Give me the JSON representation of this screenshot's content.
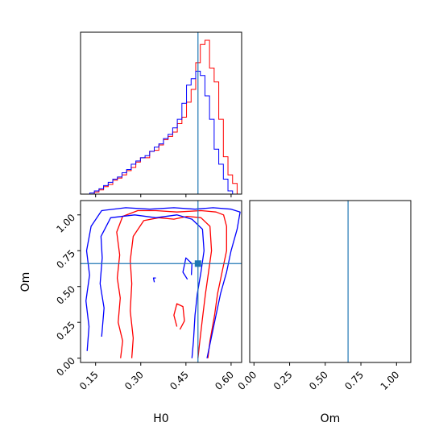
{
  "chart_data": {
    "type": "corner",
    "parameters": [
      "H0",
      "Om"
    ],
    "truth": {
      "H0": 0.49,
      "Om": 0.66,
      "color": "#1f77b4"
    },
    "series_colors": {
      "red": "#ff0000",
      "blue": "#0000ff"
    },
    "axes": {
      "H0": {
        "label": "H0",
        "xlim": [
          0.1,
          0.635
        ],
        "ticks": [
          0.15,
          0.3,
          0.45,
          0.6
        ],
        "tick_labels": [
          "0.15",
          "0.30",
          "0.45",
          "0.60"
        ]
      },
      "Om": {
        "label": "Om",
        "lim": [
          -0.03,
          1.1
        ],
        "ticks": [
          0.0,
          0.25,
          0.5,
          0.75,
          1.0
        ],
        "tick_labels": [
          "0.00",
          "0.25",
          "0.50",
          "0.75",
          "1.00"
        ]
      }
    },
    "hist_H0": {
      "bin_edges": [
        0.1,
        0.1153,
        0.1306,
        0.1459,
        0.1612,
        0.1765,
        0.1918,
        0.2071,
        0.2224,
        0.2377,
        0.253,
        0.2683,
        0.2836,
        0.2989,
        0.3142,
        0.3295,
        0.3448,
        0.3601,
        0.3754,
        0.3907,
        0.406,
        0.4213,
        0.4366,
        0.4519,
        0.4672,
        0.4825,
        0.4978,
        0.5131,
        0.5284,
        0.5437,
        0.559,
        0.5743,
        0.5896,
        0.6049,
        0.62,
        0.635
      ],
      "red": [
        0,
        0,
        0,
        2,
        4,
        7,
        9,
        13,
        15,
        18,
        22,
        25,
        30,
        34,
        34,
        40,
        41,
        46,
        51,
        54,
        58,
        66,
        72,
        86,
        98,
        123,
        140,
        144,
        118,
        105,
        70,
        35,
        18,
        10
      ],
      "blue": [
        0,
        0,
        1,
        3,
        5,
        8,
        11,
        14,
        16,
        20,
        23,
        28,
        31,
        34,
        36,
        40,
        44,
        47,
        52,
        56,
        62,
        70,
        85,
        102,
        108,
        115,
        111,
        92,
        70,
        42,
        28,
        14,
        3,
        0
      ],
      "ymax": 150
    },
    "hist_Om": {
      "bin_edges": [
        -0.03,
        0.0,
        0.0265,
        0.053,
        0.0795,
        0.106,
        0.1325,
        0.159,
        0.1855,
        0.212,
        0.2385,
        0.265,
        0.2915,
        0.318,
        0.3445,
        0.371,
        0.3975,
        0.424,
        0.4505,
        0.477,
        0.5035,
        0.53,
        0.5565,
        0.583,
        0.6095,
        0.636,
        0.6625,
        0.689,
        0.7155,
        0.742,
        0.7685,
        0.795,
        0.8215,
        0.848,
        0.8745,
        0.901,
        0.9275,
        0.954,
        0.9805,
        1.007,
        1.03,
        1.06
      ],
      "red": [],
      "blue": [],
      "ymax": 100
    },
    "contours_H0_Om": {
      "red": [
        [
          [
            0.233,
            0.0
          ],
          [
            0.24,
            0.12
          ],
          [
            0.225,
            0.25
          ],
          [
            0.232,
            0.42
          ],
          [
            0.222,
            0.56
          ],
          [
            0.23,
            0.72
          ],
          [
            0.22,
            0.88
          ],
          [
            0.24,
            0.99
          ],
          [
            0.29,
            1.03
          ],
          [
            0.35,
            1.03
          ],
          [
            0.42,
            1.02
          ],
          [
            0.5,
            1.03
          ],
          [
            0.55,
            1.02
          ],
          [
            0.575,
            1.0
          ],
          [
            0.585,
            0.92
          ],
          [
            0.585,
            0.75
          ],
          [
            0.57,
            0.6
          ],
          [
            0.555,
            0.45
          ],
          [
            0.545,
            0.3
          ],
          [
            0.53,
            0.12
          ],
          [
            0.523,
            0.0
          ]
        ],
        [
          [
            0.27,
            0.0
          ],
          [
            0.275,
            0.14
          ],
          [
            0.265,
            0.33
          ],
          [
            0.27,
            0.52
          ],
          [
            0.265,
            0.68
          ],
          [
            0.275,
            0.85
          ],
          [
            0.31,
            0.96
          ],
          [
            0.36,
            0.98
          ],
          [
            0.41,
            0.97
          ],
          [
            0.455,
            0.99
          ],
          [
            0.5,
            0.98
          ],
          [
            0.53,
            0.92
          ],
          [
            0.535,
            0.75
          ],
          [
            0.525,
            0.6
          ],
          [
            0.515,
            0.45
          ],
          [
            0.505,
            0.28
          ],
          [
            0.495,
            0.1
          ],
          [
            0.49,
            0.0
          ]
        ],
        [
          [
            0.42,
            0.22
          ],
          [
            0.41,
            0.3
          ],
          [
            0.42,
            0.38
          ],
          [
            0.44,
            0.36
          ],
          [
            0.445,
            0.26
          ],
          [
            0.43,
            0.2
          ]
        ]
      ],
      "blue": [
        [
          [
            0.122,
            0.05
          ],
          [
            0.128,
            0.22
          ],
          [
            0.118,
            0.4
          ],
          [
            0.13,
            0.58
          ],
          [
            0.12,
            0.75
          ],
          [
            0.135,
            0.92
          ],
          [
            0.17,
            1.03
          ],
          [
            0.25,
            1.05
          ],
          [
            0.33,
            1.04
          ],
          [
            0.41,
            1.05
          ],
          [
            0.48,
            1.04
          ],
          [
            0.54,
            1.05
          ],
          [
            0.6,
            1.04
          ],
          [
            0.63,
            1.02
          ],
          [
            0.62,
            0.9
          ],
          [
            0.6,
            0.75
          ],
          [
            0.585,
            0.6
          ],
          [
            0.565,
            0.45
          ],
          [
            0.55,
            0.3
          ],
          [
            0.535,
            0.15
          ],
          [
            0.52,
            0.0
          ]
        ],
        [
          [
            0.17,
            0.15
          ],
          [
            0.178,
            0.35
          ],
          [
            0.165,
            0.52
          ],
          [
            0.172,
            0.7
          ],
          [
            0.168,
            0.85
          ],
          [
            0.2,
            0.98
          ],
          [
            0.28,
            1.0
          ],
          [
            0.35,
            0.98
          ],
          [
            0.42,
            1.0
          ],
          [
            0.47,
            0.97
          ],
          [
            0.505,
            0.9
          ],
          [
            0.51,
            0.75
          ],
          [
            0.5,
            0.6
          ],
          [
            0.488,
            0.45
          ],
          [
            0.48,
            0.3
          ],
          [
            0.475,
            0.12
          ],
          [
            0.47,
            0.0
          ]
        ],
        [
          [
            0.455,
            0.55
          ],
          [
            0.44,
            0.6
          ],
          [
            0.45,
            0.7
          ],
          [
            0.47,
            0.66
          ],
          [
            0.468,
            0.58
          ]
        ],
        [
          [
            0.345,
            0.53
          ],
          [
            0.342,
            0.56
          ],
          [
            0.35,
            0.56
          ]
        ]
      ]
    }
  }
}
